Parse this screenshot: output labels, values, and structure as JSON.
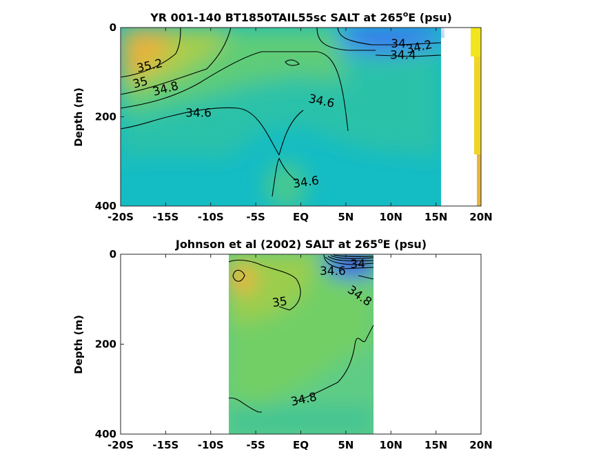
{
  "chart_data": [
    {
      "type": "heatmap",
      "title_prefix": "YR 001-140 BT1850TAIL55sc SALT at 265",
      "title_sup": "o",
      "title_suffix": "E (psu)",
      "xlabel": "",
      "ylabel": "Depth (m)",
      "x_ticks": [
        -20,
        -15,
        -10,
        -5,
        0,
        5,
        10,
        15,
        20
      ],
      "x_tick_labels": [
        "-20S",
        "-15S",
        "-10S",
        "-5S",
        "EQ",
        "5N",
        "10N",
        "15N",
        "20N"
      ],
      "y_ticks": [
        0,
        200,
        400
      ],
      "y_tick_labels": [
        "0",
        "200",
        "400"
      ],
      "xlim": [
        -20,
        20
      ],
      "ylim": [
        0,
        400
      ],
      "y_reversed": true,
      "data_extent_lat": [
        -20,
        15.5
      ],
      "contour_labels": [
        {
          "text": "35.2",
          "lat": -18.1,
          "depth": 100,
          "angle": -12
        },
        {
          "text": "35",
          "lat": -18.5,
          "depth": 136,
          "angle": -15
        },
        {
          "text": "34.8",
          "lat": -16.3,
          "depth": 153,
          "angle": -15
        },
        {
          "text": "34.6",
          "lat": -12.8,
          "depth": 200,
          "angle": 0
        },
        {
          "text": "34.6",
          "lat": 0.8,
          "depth": 167,
          "angle": 12
        },
        {
          "text": "34.6",
          "lat": -0.8,
          "depth": 359,
          "angle": -8
        },
        {
          "text": "34",
          "lat": 10.0,
          "depth": 45,
          "angle": 0
        },
        {
          "text": "34.2",
          "lat": 11.8,
          "depth": 58,
          "angle": -12
        },
        {
          "text": "34.4",
          "lat": 9.9,
          "depth": 70,
          "angle": 0
        }
      ]
    },
    {
      "type": "heatmap",
      "title_prefix": "Johnson et al (2002) SALT at 265",
      "title_sup": "o",
      "title_suffix": "E (psu)",
      "xlabel": "",
      "ylabel": "Depth (m)",
      "x_ticks": [
        -20,
        -15,
        -10,
        -5,
        0,
        5,
        10,
        15,
        20
      ],
      "x_tick_labels": [
        "-20S",
        "-15S",
        "-10S",
        "-5S",
        "EQ",
        "5N",
        "10N",
        "15N",
        "20N"
      ],
      "y_ticks": [
        0,
        200,
        400
      ],
      "y_tick_labels": [
        "0",
        "200",
        "400"
      ],
      "xlim": [
        -20,
        20
      ],
      "ylim": [
        0,
        400
      ],
      "y_reversed": true,
      "data_extent_lat": [
        -8,
        8
      ],
      "contour_labels": [
        {
          "text": "35",
          "lat": -3.1,
          "depth": 117,
          "angle": -8
        },
        {
          "text": "34.8",
          "lat": -1.0,
          "depth": 337,
          "angle": -12
        },
        {
          "text": "34.6",
          "lat": 2.1,
          "depth": 46,
          "angle": 0
        },
        {
          "text": "34",
          "lat": 5.5,
          "depth": 31,
          "angle": 0
        },
        {
          "text": "34.8",
          "lat": 5.1,
          "depth": 83,
          "angle": 35
        }
      ]
    }
  ],
  "colors": {
    "background_field": "#14bcc4",
    "mid_green": "#72cf66",
    "saline_orange": "#e9b43e",
    "fresh_blue": "#3b6ef2",
    "deep_blue": "#3e2fd6",
    "yellow": "#f3e51d"
  }
}
